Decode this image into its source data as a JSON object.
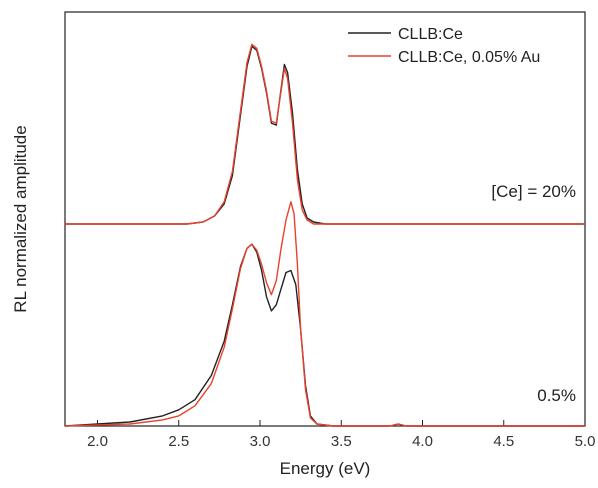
{
  "chart_data": {
    "type": "line",
    "xlabel": "Energy (eV)",
    "ylabel": "RL normalized amplitude",
    "xlim": [
      1.8,
      5.0
    ],
    "xticks": [
      2.0,
      2.5,
      3.0,
      3.5,
      4.0,
      4.5,
      5.0
    ],
    "xtick_labels": [
      "2.0",
      "2.5",
      "3.0",
      "3.5",
      "4.0",
      "4.5",
      "5.0"
    ],
    "ylim": [
      0,
      2.05
    ],
    "y_tick_labels_shown": false,
    "grid": false,
    "legend_position": "top-right",
    "series": [
      {
        "name": "CLLB:Ce",
        "color": "#222222",
        "groups": [
          {
            "label": "[Ce] = 20%",
            "x": [
              1.8,
              2.4,
              2.55,
              2.65,
              2.72,
              2.78,
              2.83,
              2.88,
              2.92,
              2.95,
              2.98,
              3.01,
              3.04,
              3.07,
              3.1,
              3.13,
              3.15,
              3.17,
              3.2,
              3.23,
              3.26,
              3.29,
              3.33,
              3.4,
              3.5,
              3.8,
              4.5,
              5.0
            ],
            "y": [
              1.0,
              1.0,
              1.0,
              1.01,
              1.04,
              1.1,
              1.24,
              1.54,
              1.78,
              1.88,
              1.86,
              1.77,
              1.65,
              1.5,
              1.49,
              1.67,
              1.79,
              1.75,
              1.55,
              1.27,
              1.1,
              1.03,
              1.01,
              1.0,
              1.0,
              1.0,
              1.0,
              1.0
            ]
          },
          {
            "label": "0.5%",
            "x": [
              1.8,
              2.2,
              2.4,
              2.5,
              2.6,
              2.7,
              2.78,
              2.83,
              2.88,
              2.92,
              2.95,
              2.98,
              3.01,
              3.04,
              3.07,
              3.1,
              3.13,
              3.16,
              3.19,
              3.22,
              3.25,
              3.28,
              3.31,
              3.35,
              3.45,
              3.8,
              3.85,
              3.9,
              4.5,
              5.0
            ],
            "y": [
              0.0,
              0.02,
              0.05,
              0.08,
              0.13,
              0.25,
              0.42,
              0.6,
              0.79,
              0.88,
              0.9,
              0.86,
              0.77,
              0.64,
              0.57,
              0.6,
              0.68,
              0.76,
              0.77,
              0.7,
              0.48,
              0.2,
              0.05,
              0.01,
              0.0,
              0.0,
              0.01,
              0.0,
              0.0,
              0.0
            ]
          }
        ]
      },
      {
        "name": "CLLB:Ce, 0.05% Au",
        "color": "#e8412d",
        "groups": [
          {
            "label": "[Ce] = 20%",
            "x": [
              1.8,
              2.4,
              2.55,
              2.65,
              2.72,
              2.78,
              2.83,
              2.88,
              2.92,
              2.95,
              2.98,
              3.01,
              3.04,
              3.07,
              3.1,
              3.13,
              3.15,
              3.17,
              3.2,
              3.23,
              3.26,
              3.29,
              3.33,
              3.4,
              3.5,
              3.8,
              4.5,
              5.0
            ],
            "y": [
              1.0,
              1.0,
              1.0,
              1.01,
              1.04,
              1.11,
              1.26,
              1.56,
              1.8,
              1.89,
              1.87,
              1.78,
              1.66,
              1.51,
              1.5,
              1.66,
              1.77,
              1.72,
              1.5,
              1.22,
              1.07,
              1.02,
              1.0,
              1.0,
              1.0,
              1.0,
              1.0,
              1.0
            ]
          },
          {
            "label": "0.5%",
            "x": [
              1.8,
              2.2,
              2.4,
              2.5,
              2.6,
              2.7,
              2.78,
              2.83,
              2.88,
              2.92,
              2.95,
              2.98,
              3.01,
              3.04,
              3.07,
              3.1,
              3.13,
              3.16,
              3.19,
              3.21,
              3.23,
              3.25,
              3.28,
              3.31,
              3.35,
              3.45,
              3.8,
              3.85,
              3.9,
              4.5,
              5.0
            ],
            "y": [
              0.0,
              0.01,
              0.03,
              0.05,
              0.1,
              0.21,
              0.39,
              0.58,
              0.78,
              0.88,
              0.9,
              0.87,
              0.8,
              0.71,
              0.65,
              0.72,
              0.88,
              1.02,
              1.11,
              1.05,
              0.8,
              0.48,
              0.18,
              0.04,
              0.01,
              0.0,
              0.0,
              0.01,
              0.0,
              0.0,
              0.0
            ]
          }
        ]
      }
    ],
    "annotations": [
      {
        "text": "[Ce] = 20%",
        "x": 4.92,
        "y": 1.12
      },
      {
        "text": "0.5%",
        "x": 4.92,
        "y": 0.13
      }
    ]
  }
}
